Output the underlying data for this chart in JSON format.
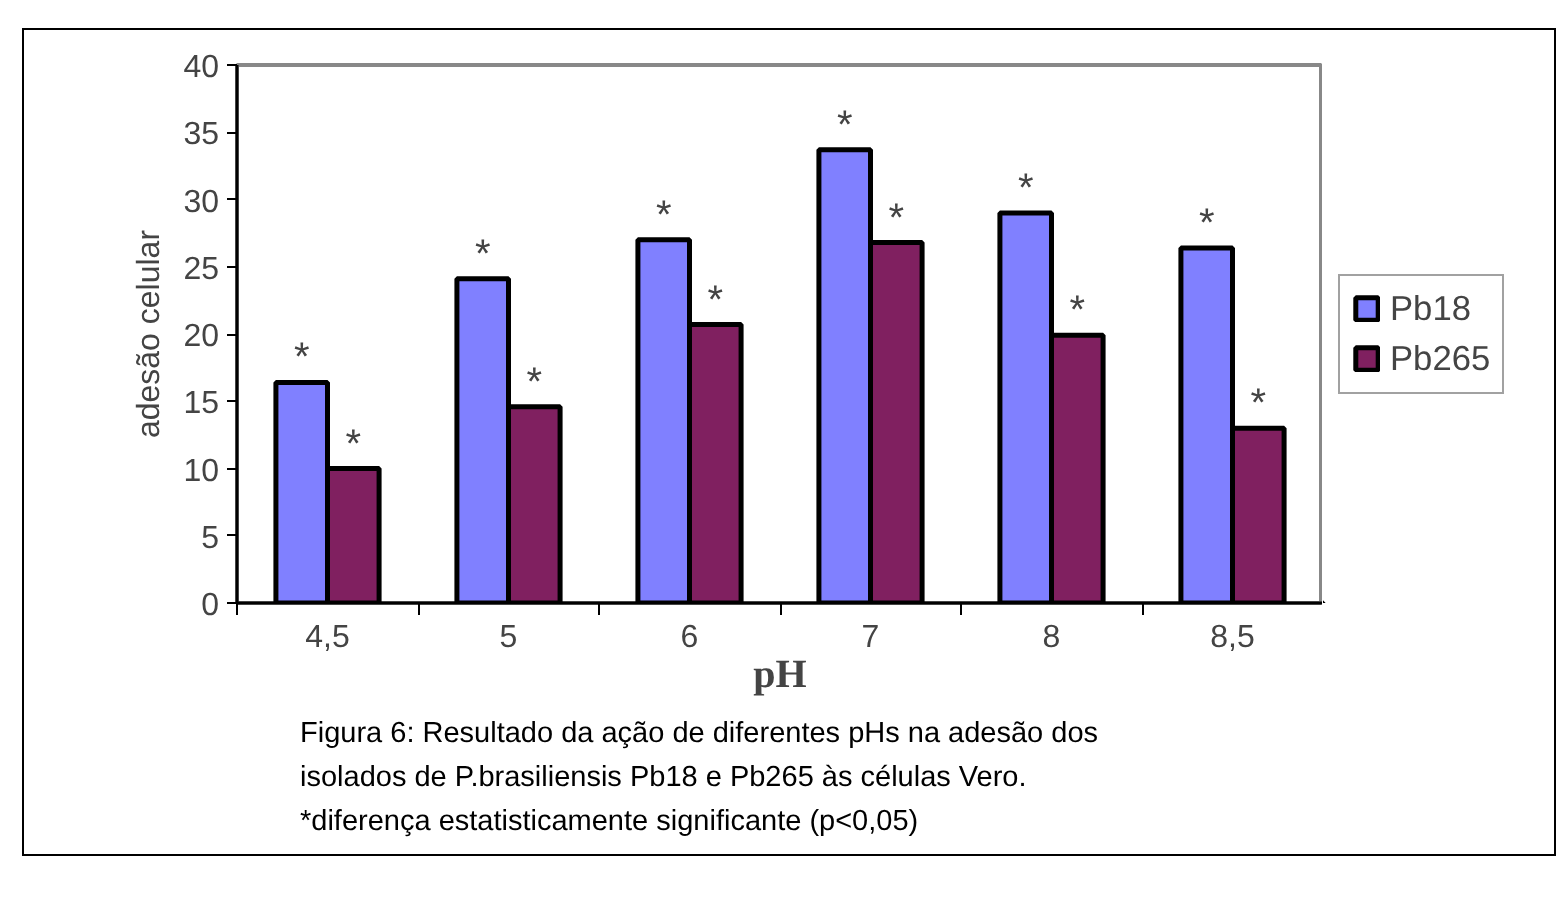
{
  "chart_data": {
    "type": "bar",
    "xlabel": "pH",
    "ylabel": "adesão celular",
    "categories": [
      "4,5",
      "5",
      "6",
      "7",
      "8",
      "8,5"
    ],
    "series": [
      {
        "name": "Pb18",
        "color": "#8080ff",
        "values": [
          16.4,
          24.1,
          27.0,
          33.7,
          29.0,
          26.4
        ]
      },
      {
        "name": "Pb265",
        "color": "#802060",
        "values": [
          10.0,
          14.6,
          20.7,
          26.8,
          19.9,
          13.0
        ]
      }
    ],
    "ylim": [
      0,
      40
    ],
    "yticks": [
      0,
      5,
      10,
      15,
      20,
      25,
      30,
      35,
      40
    ],
    "grid": false,
    "legend": "right",
    "annotations": [
      {
        "text": "*",
        "x": "4,5",
        "y": 16.4
      },
      {
        "text": "*",
        "x": "4,5",
        "y": 10.0
      },
      {
        "text": "*",
        "x": "5",
        "y": 24.1
      },
      {
        "text": "*",
        "x": "5",
        "y": 14.6
      },
      {
        "text": "*",
        "x": "6",
        "y": 27.0
      },
      {
        "text": "*",
        "x": "6",
        "y": 20.7
      },
      {
        "text": "*",
        "x": "7",
        "y": 33.7
      },
      {
        "text": "*",
        "x": "7",
        "y": 26.8
      },
      {
        "text": "*",
        "x": "8",
        "y": 29.0
      },
      {
        "text": "*",
        "x": "8",
        "y": 19.9
      },
      {
        "text": "*",
        "x": "8,5",
        "y": 26.4
      },
      {
        "text": "*",
        "x": "8,5",
        "y": 13.0
      },
      "Figura 6: Resultado da ação de diferentes pHs na adesão dos",
      "isolados  de P.brasiliensis Pb18 e Pb265 às células Vero.",
      "*diferença estatisticamente significante (p<0,05)"
    ]
  }
}
